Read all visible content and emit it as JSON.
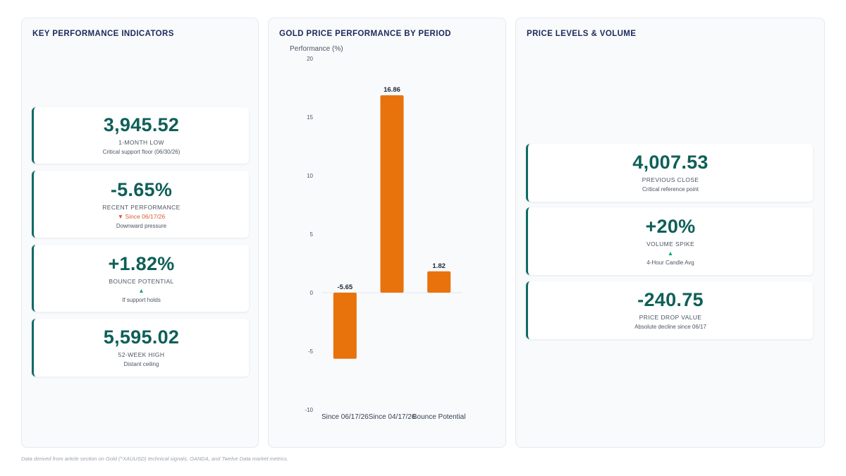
{
  "kpi_panel": {
    "title": "KEY PERFORMANCE INDICATORS",
    "cards": [
      {
        "value": "3,945.52",
        "label": "1-MONTH LOW",
        "trend": "",
        "note": "Critical support floor (06/30/26)"
      },
      {
        "value": "-5.65%",
        "label": "RECENT PERFORMANCE",
        "trend": "▼ Since 06/17/26",
        "note": "Downward pressure"
      },
      {
        "value": "+1.82%",
        "label": "BOUNCE POTENTIAL",
        "trend": "▲",
        "note": "If support holds"
      },
      {
        "value": "5,595.02",
        "label": "52-WEEK HIGH",
        "trend": "",
        "note": "Distant ceiling"
      }
    ]
  },
  "chart_panel": {
    "title": "GOLD PRICE PERFORMANCE BY PERIOD"
  },
  "levels_panel": {
    "title": "PRICE LEVELS & VOLUME",
    "cards": [
      {
        "value": "4,007.53",
        "label": "PREVIOUS CLOSE",
        "trend": "",
        "note": "Critical reference point"
      },
      {
        "value": "+20%",
        "label": "VOLUME SPIKE",
        "trend": "▲",
        "note": "4-Hour Candle Avg"
      },
      {
        "value": "-240.75",
        "label": "PRICE DROP VALUE",
        "trend": "",
        "note": "Absolute decline since 06/17"
      }
    ]
  },
  "chart_data": {
    "type": "bar",
    "title": "GOLD PRICE PERFORMANCE BY PERIOD",
    "ylabel": "Performance (%)",
    "xlabel": "",
    "categories": [
      "Since 06/17/26",
      "Since 04/17/26",
      "Bounce Potential"
    ],
    "values": [
      -5.65,
      16.86,
      1.82
    ],
    "data_labels": [
      "-5.65",
      "16.86",
      "1.82"
    ],
    "ylim": [
      -10,
      20
    ],
    "yticks": [
      -10,
      -5,
      0,
      5,
      10,
      15,
      20
    ],
    "grid": false,
    "legend": "none",
    "bar_color": "#e8720c"
  },
  "colors": {
    "accent": "#0f5f59",
    "title": "#1e2a5a",
    "down": "#dc5a32",
    "up": "#10a37f"
  },
  "footnote": "Data derived from article section on Gold (^XAUUSD) technical signals, OANDA, and Twelve Data market metrics."
}
